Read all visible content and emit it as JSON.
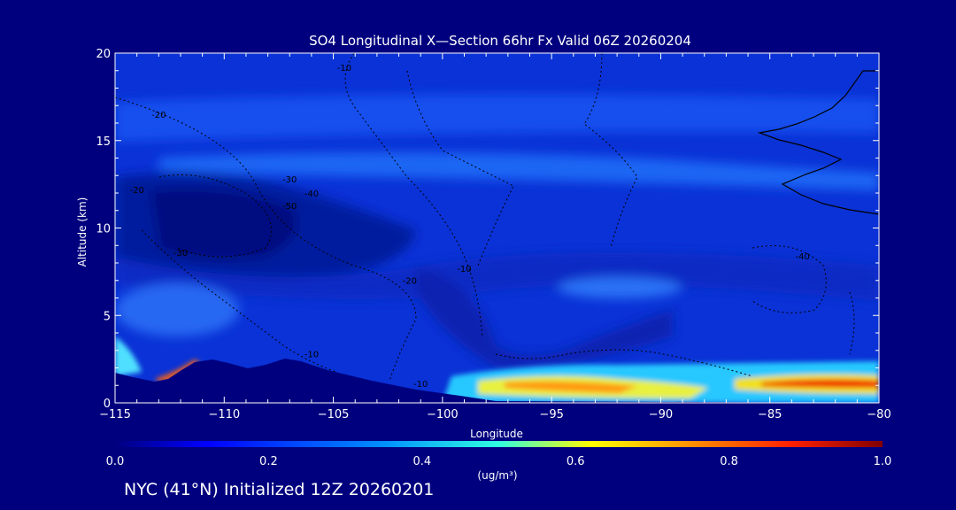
{
  "chart_data": {
    "type": "heatmap",
    "title": "SO4 Longitudinal X—Section 66hr  Fx Valid 06Z 20260204",
    "xlabel": "Longitude",
    "ylabel": "Altitude (km)",
    "xlim": [
      -115,
      -80
    ],
    "ylim": [
      0,
      20
    ],
    "x_ticks": [
      "−115",
      "−110",
      "−105",
      "−100",
      "−95",
      "−90",
      "−85",
      "−80"
    ],
    "y_ticks": [
      "0",
      "5",
      "10",
      "15",
      "20"
    ],
    "colorbar": {
      "ticks": [
        "0.0",
        "0.2",
        "0.4",
        "0.6",
        "0.8",
        "1.0"
      ],
      "unit": "(ug/m³)",
      "range": [
        0,
        1
      ]
    },
    "contour_labels": [
      {
        "text": "-10",
        "lon": -104.5,
        "alt": 19.0
      },
      {
        "text": "-20",
        "lon": -113.0,
        "alt": 16.3
      },
      {
        "text": "-20",
        "lon": -114.0,
        "alt": 12.0
      },
      {
        "text": "-30",
        "lon": -107.0,
        "alt": 12.6
      },
      {
        "text": "-40",
        "lon": -106.0,
        "alt": 11.8
      },
      {
        "text": "-50",
        "lon": -107.0,
        "alt": 11.1
      },
      {
        "text": "-30",
        "lon": -112.0,
        "alt": 8.4
      },
      {
        "text": "-20",
        "lon": -101.5,
        "alt": 6.8
      },
      {
        "text": "-10",
        "lon": -99.0,
        "alt": 7.5
      },
      {
        "text": "-10",
        "lon": -106.0,
        "alt": 2.6
      },
      {
        "text": "-10",
        "lon": -101.0,
        "alt": 0.9
      },
      {
        "text": "-40",
        "lon": -83.5,
        "alt": 8.2
      }
    ]
  },
  "footer": "NYC (41°N) Initialized 12Z 20260201",
  "colors": {
    "background": "#00007f",
    "field_base": "#0a32d6",
    "axis": "#ffffff"
  }
}
